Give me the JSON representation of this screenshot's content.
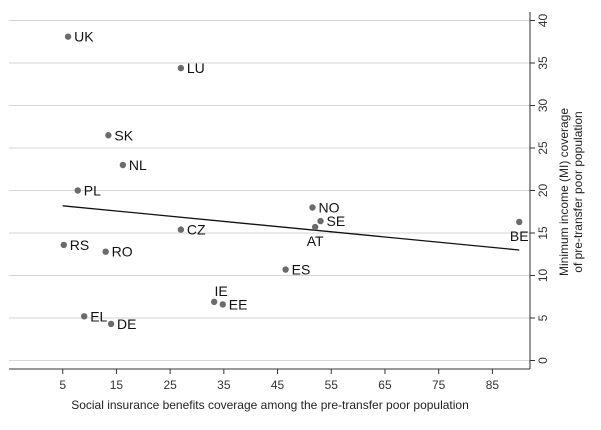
{
  "chart_data": {
    "type": "scatter",
    "xlabel": "Social insurance benefits coverage among the pre-transfer poor population",
    "ylabel_lines": [
      "Minimum income (MI) coverage",
      "of pre-transfer poor population"
    ],
    "xlim": [
      -5,
      92
    ],
    "ylim": [
      -1,
      41
    ],
    "x_ticks": [
      5,
      15,
      25,
      35,
      45,
      55,
      65,
      75,
      85
    ],
    "y_ticks": [
      0,
      5,
      10,
      15,
      20,
      25,
      30,
      35,
      40
    ],
    "grid": "horizontal",
    "y_axis_side": "right",
    "points": [
      {
        "label": "UK",
        "x": 6,
        "y": 38.1,
        "anchor": "right"
      },
      {
        "label": "LU",
        "x": 27,
        "y": 34.4,
        "anchor": "right"
      },
      {
        "label": "SK",
        "x": 13.5,
        "y": 26.5,
        "anchor": "right"
      },
      {
        "label": "NL",
        "x": 16.2,
        "y": 23.0,
        "anchor": "right"
      },
      {
        "label": "PL",
        "x": 7.8,
        "y": 20.0,
        "anchor": "right"
      },
      {
        "label": "NO",
        "x": 51.5,
        "y": 18.0,
        "anchor": "right"
      },
      {
        "label": "SE",
        "x": 53,
        "y": 16.4,
        "anchor": "right"
      },
      {
        "label": "AT",
        "x": 52,
        "y": 15.7,
        "anchor": "below"
      },
      {
        "label": "BE",
        "x": 90,
        "y": 16.3,
        "anchor": "below"
      },
      {
        "label": "CZ",
        "x": 27,
        "y": 15.4,
        "anchor": "right"
      },
      {
        "label": "RS",
        "x": 5.2,
        "y": 13.6,
        "anchor": "right"
      },
      {
        "label": "RO",
        "x": 13,
        "y": 12.8,
        "anchor": "right"
      },
      {
        "label": "ES",
        "x": 46.5,
        "y": 10.7,
        "anchor": "right"
      },
      {
        "label": "IE",
        "x": 33.2,
        "y": 6.9,
        "anchor": "above"
      },
      {
        "label": "EE",
        "x": 34.8,
        "y": 6.6,
        "anchor": "right"
      },
      {
        "label": "EL",
        "x": 9,
        "y": 5.2,
        "anchor": "right"
      },
      {
        "label": "DE",
        "x": 14,
        "y": 4.3,
        "anchor": "right"
      }
    ],
    "fit_line": {
      "x": [
        5,
        90
      ],
      "y": [
        18.2,
        13.0
      ]
    }
  }
}
